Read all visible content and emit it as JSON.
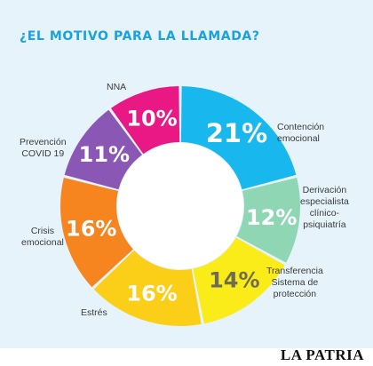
{
  "title": "¿EL MOTIVO PARA LA LLAMADA?",
  "watermark": "LA PATRIA",
  "chart_data": {
    "type": "pie",
    "variant": "donut",
    "title": "¿EL MOTIVO PARA LA LLAMADA?",
    "value_unit": "%",
    "slices": [
      {
        "label": "Contención emocional",
        "label_lines": [
          "Contención",
          "emocional"
        ],
        "value": 21,
        "display": "21%",
        "color": "#18b8ef",
        "value_text_color": "#ffffff"
      },
      {
        "label": "Derivación especialista clínico-psiquiatría",
        "label_lines": [
          "Derivación",
          "especialista",
          "clínico-",
          "psiquiatría"
        ],
        "value": 12,
        "display": "12%",
        "color": "#8ed6b4",
        "value_text_color": "#ffffff"
      },
      {
        "label": "Transferencia Sistema de protección",
        "label_lines": [
          "Transferencia",
          "Sistema de",
          "protección"
        ],
        "value": 14,
        "display": "14%",
        "color": "#f9ec18",
        "value_text_color": "#6f6c54"
      },
      {
        "label": "Estrés",
        "label_lines": [
          "Estrés"
        ],
        "value": 16,
        "display": "16%",
        "color": "#fbcf17",
        "value_text_color": "#ffffff"
      },
      {
        "label": "Crisis emocional",
        "label_lines": [
          "Crisis",
          "emocional"
        ],
        "value": 16,
        "display": "16%",
        "color": "#f6841f",
        "value_text_color": "#ffffff"
      },
      {
        "label": "Prevención COVID 19",
        "label_lines": [
          "Prevención",
          "COVID 19"
        ],
        "value": 11,
        "display": "11%",
        "color": "#8a58b4",
        "value_text_color": "#ffffff"
      },
      {
        "label": "NNA",
        "label_lines": [
          "NNA"
        ],
        "value": 10,
        "display": "10%",
        "color": "#ea1884",
        "value_text_color": "#ffffff"
      }
    ],
    "start": "12 o'clock, clockwise",
    "legend": "none (labels outside slices)"
  }
}
